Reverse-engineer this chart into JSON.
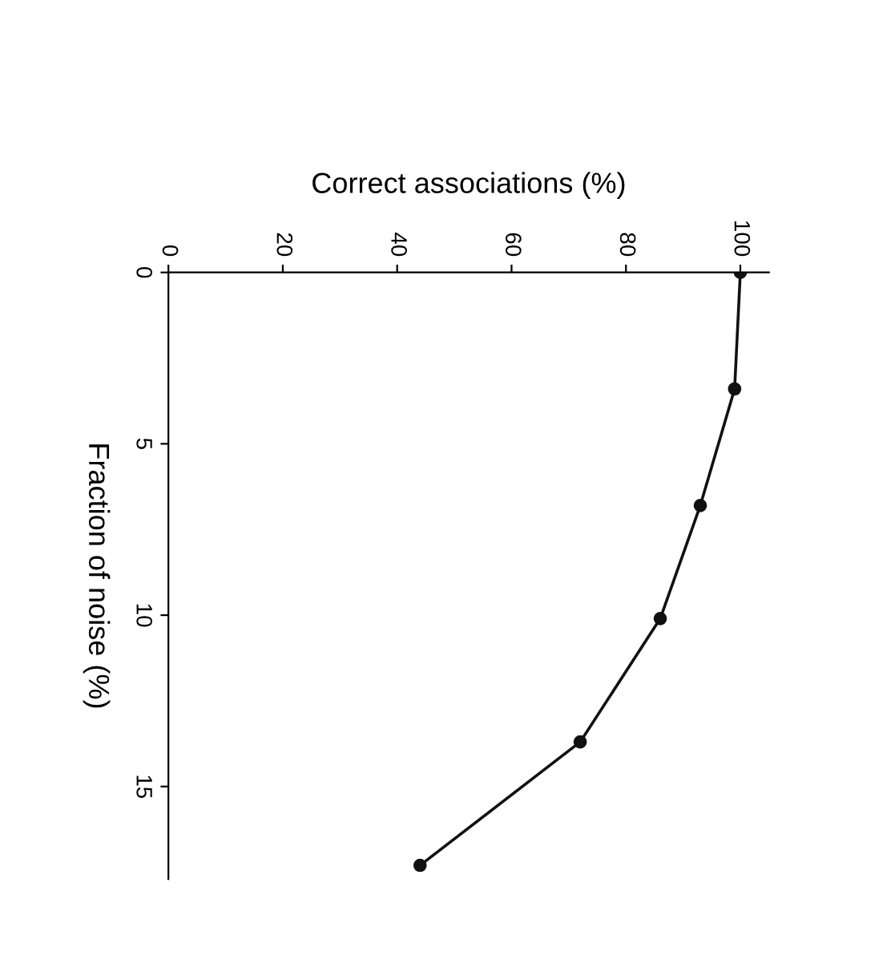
{
  "chart_data": {
    "type": "line",
    "xlabel": "Correct associations (%)",
    "ylabel": "Fraction of noise (%)",
    "x": [
      100,
      99,
      93,
      86,
      72,
      44
    ],
    "series": [
      {
        "color": "#111111",
        "values": [
          0,
          3.4,
          6.8,
          10.1,
          13.7,
          17.3
        ]
      }
    ],
    "xlim": [
      0,
      105
    ],
    "xticks": [
      0,
      20,
      40,
      60,
      80,
      100
    ],
    "ylim": [
      17.7,
      0
    ],
    "yticks": [
      0,
      5,
      10,
      15
    ],
    "marker": "circle",
    "line_style": "solid"
  }
}
